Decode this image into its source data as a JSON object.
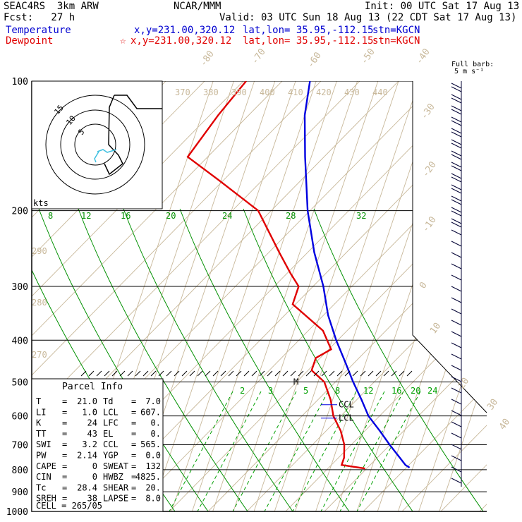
{
  "header": {
    "line1_left": "SEAC4RS  3km ARW",
    "line1_center": "NCAR/MMM",
    "line1_right": "Init: 00 UTC Sat 17 Aug 13",
    "line2_left": "Fcst:   27 h",
    "line2_right": "Valid: 03 UTC Sun 18 Aug 13 (22 CDT Sat 17 Aug 13)",
    "temp_label": "Temperature",
    "temp_coords": "x,y=231.00,320.12",
    "temp_latlon": "lat,lon= 35.95,-112.15",
    "temp_stn": "stn=KGCN",
    "dew_label": "Dewpoint",
    "dew_marker": "☆",
    "dew_coords": "x,y=231.00,320.12",
    "dew_latlon": "lat,lon= 35.95,-112.15",
    "dew_stn": "stn=KGCN",
    "barb_legend_1": "Full barb:",
    "barb_legend_2": "5 m s⁻¹"
  },
  "colors": {
    "temperature": "#0000e0",
    "dewpoint": "#e00000",
    "isotherm": "#c8b89a",
    "dry_adiabat": "#c8b89a",
    "moist_adiabat": "#009000",
    "mixing_ratio": "#00a000",
    "hodograph_wind": "#000000",
    "hodograph_shear": "#40c0e0"
  },
  "chart_data": {
    "type": "skew-t",
    "pressure_levels": [
      100,
      200,
      300,
      400,
      500,
      600,
      700,
      800,
      900,
      1000
    ],
    "isotherm_labels": [
      "-80",
      "-70",
      "-60",
      "-50",
      "-40",
      "-30",
      "-20",
      "-10",
      "0",
      "10",
      "20",
      "30",
      "40"
    ],
    "theta_top_labels": [
      "370",
      "380",
      "390",
      "400",
      "410",
      "420",
      "430",
      "440"
    ],
    "theta_left_labels": [
      "290",
      "280",
      "270"
    ],
    "moist_adiabat_labels": [
      "8",
      "12",
      "16",
      "20",
      "24",
      "28",
      "32"
    ],
    "mixing_ratio_labels": [
      "2",
      "3",
      "5",
      "8",
      "12",
      "16",
      "20",
      "24"
    ],
    "temperature_profile": [
      {
        "p": 100,
        "t": -83
      },
      {
        "p": 120,
        "t": -80
      },
      {
        "p": 150,
        "t": -73
      },
      {
        "p": 200,
        "t": -63
      },
      {
        "p": 250,
        "t": -53
      },
      {
        "p": 300,
        "t": -43
      },
      {
        "p": 350,
        "t": -36
      },
      {
        "p": 400,
        "t": -28
      },
      {
        "p": 450,
        "t": -20
      },
      {
        "p": 500,
        "t": -13
      },
      {
        "p": 550,
        "t": -6
      },
      {
        "p": 600,
        "t": 0
      },
      {
        "p": 650,
        "t": 8
      },
      {
        "p": 700,
        "t": 15
      },
      {
        "p": 750,
        "t": 22
      },
      {
        "p": 780,
        "t": 26
      },
      {
        "p": 791,
        "t": 28.4
      }
    ],
    "dewpoint_profile": [
      {
        "p": 100,
        "t": -114
      },
      {
        "p": 120,
        "t": -122
      },
      {
        "p": 150,
        "t": -130
      },
      {
        "p": 170,
        "t": -111
      },
      {
        "p": 200,
        "t": -87
      },
      {
        "p": 250,
        "t": -70
      },
      {
        "p": 280,
        "t": -61
      },
      {
        "p": 300,
        "t": -55
      },
      {
        "p": 330,
        "t": -55
      },
      {
        "p": 380,
        "t": -36
      },
      {
        "p": 420,
        "t": -29
      },
      {
        "p": 440,
        "t": -35
      },
      {
        "p": 470,
        "t": -35
      },
      {
        "p": 500,
        "t": -27
      },
      {
        "p": 550,
        "t": -21
      },
      {
        "p": 600,
        "t": -17
      },
      {
        "p": 650,
        "t": -11
      },
      {
        "p": 700,
        "t": -7
      },
      {
        "p": 750,
        "t": -5
      },
      {
        "p": 780,
        "t": -5
      },
      {
        "p": 795,
        "t": 7
      }
    ],
    "markers": [
      {
        "label": "M",
        "p": 500
      },
      {
        "label": "CCL",
        "p": 565
      },
      {
        "label": "LCL",
        "p": 607
      }
    ],
    "hodograph": {
      "units_label": "kts",
      "ring_labels": [
        "5",
        "10",
        "15"
      ]
    }
  },
  "parcel_info": {
    "title": "Parcel Info",
    "rows": [
      {
        "k1": "T",
        "v1": "21.0",
        "k2": "Td",
        "v2": "7.0"
      },
      {
        "k1": "LI",
        "v1": "1.0",
        "k2": "LCL",
        "v2": "607."
      },
      {
        "k1": "K",
        "v1": "24",
        "k2": "LFC",
        "v2": "0."
      },
      {
        "k1": "TT",
        "v1": "43",
        "k2": "EL",
        "v2": "0."
      },
      {
        "k1": "SWI",
        "v1": "3.2",
        "k2": "CCL",
        "v2": "565."
      },
      {
        "k1": "PW",
        "v1": "2.14",
        "k2": "YGP",
        "v2": "0.0"
      },
      {
        "k1": "CAPE",
        "v1": "0",
        "k2": "SWEAT",
        "v2": "132"
      },
      {
        "k1": "CIN",
        "v1": "0",
        "k2": "HWBZ",
        "v2": "4825."
      },
      {
        "k1": "Tc",
        "v1": "28.4",
        "k2": "SHEAR",
        "v2": "20."
      },
      {
        "k1": "SREH",
        "v1": "38",
        "k2": "LAPSE",
        "v2": "8.0"
      }
    ],
    "cell": "CELL = 265/05"
  }
}
